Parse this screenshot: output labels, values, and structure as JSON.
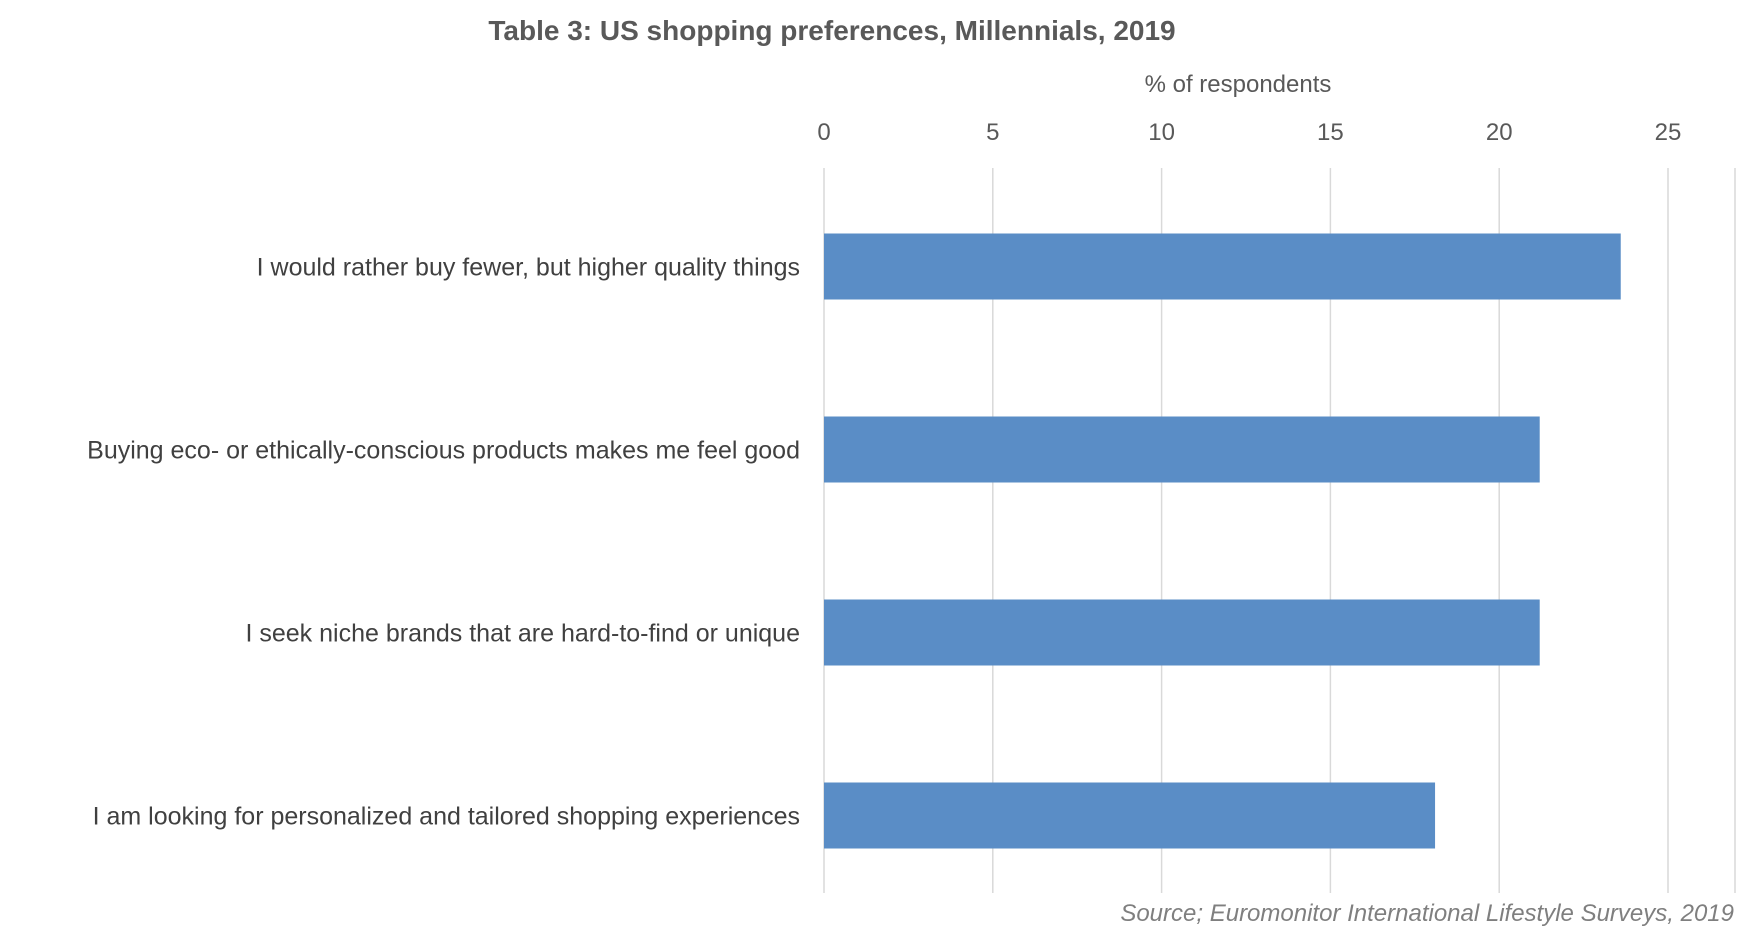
{
  "chart_data": {
    "type": "bar",
    "orientation": "horizontal",
    "title": "Table 3: US shopping preferences, Millennials, 2019",
    "xlabel": "% of respondents",
    "ylabel": "",
    "xlim": [
      0,
      25
    ],
    "ticks": [
      "0",
      "5",
      "10",
      "15",
      "20",
      "25"
    ],
    "tick_values": [
      0,
      5,
      10,
      15,
      20,
      25
    ],
    "grid": true,
    "axis_position": "top",
    "categories": [
      "I would rather buy fewer, but higher quality things",
      "Buying eco- or ethically-conscious products makes me feel good",
      "I seek niche brands that are hard-to-find or unique",
      "I am looking for personalized and tailored shopping experiences"
    ],
    "values": [
      23.6,
      21.2,
      21.2,
      18.1
    ],
    "bar_color": "#5a8dc6",
    "source": "Source; Euromonitor International Lifestyle Surveys, 2019"
  }
}
